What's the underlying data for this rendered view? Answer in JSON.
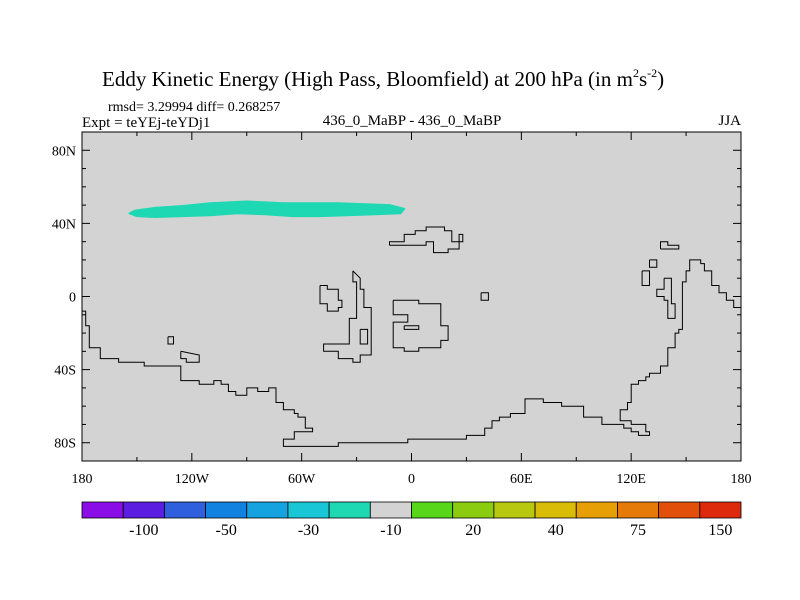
{
  "chart_data": {
    "type": "heatmap",
    "title": "Eddy Kinetic Energy (High Pass, Bloomfield) at 200 hPa (in m",
    "title_units": {
      "m_exp": "2",
      "s": "s",
      "s_exp": "-2",
      "close": ")"
    },
    "stats_label": "rmsd= 3.29994 diff= 0.268257",
    "expt_label": "Expt = teYEj-teYDj1",
    "center_label": "436_0_MaBP - 436_0_MaBP",
    "season_label": "JJA",
    "x_axis": {
      "range": [
        -180,
        180
      ],
      "ticks": [
        -180,
        -120,
        -60,
        0,
        60,
        120,
        180
      ],
      "tick_labels": [
        "180",
        "120W",
        "60W",
        "0",
        "60E",
        "120E",
        "180"
      ]
    },
    "y_axis": {
      "range": [
        -90,
        90
      ],
      "ticks": [
        80,
        40,
        0,
        -40,
        -80
      ],
      "tick_labels": [
        "80N",
        "40N",
        "0",
        "40S",
        "80S"
      ]
    },
    "background_color": "#d3d3d3",
    "anomaly_regions": [
      {
        "label": "-10 band",
        "color": "#1ed8b4",
        "outline": [
          [
            -151,
            47
          ],
          [
            -140,
            48.5
          ],
          [
            -125,
            49.5
          ],
          [
            -110,
            51
          ],
          [
            -100,
            51.5
          ],
          [
            -90,
            52
          ],
          [
            -80,
            51.5
          ],
          [
            -70,
            51
          ],
          [
            -55,
            51
          ],
          [
            -40,
            51
          ],
          [
            -25,
            50.5
          ],
          [
            -12,
            50
          ],
          [
            -4,
            48
          ],
          [
            -6,
            45.5
          ],
          [
            -20,
            45
          ],
          [
            -35,
            44.5
          ],
          [
            -50,
            44
          ],
          [
            -65,
            44
          ],
          [
            -80,
            45
          ],
          [
            -95,
            45.5
          ],
          [
            -110,
            44.5
          ],
          [
            -125,
            44
          ],
          [
            -140,
            43.5
          ],
          [
            -150,
            44
          ],
          [
            -154,
            45.5
          ]
        ]
      }
    ],
    "colorbar": {
      "colors": [
        "#8a0de8",
        "#5b1de0",
        "#2f5fdc",
        "#1182e0",
        "#15a3e0",
        "#19c6d6",
        "#1ed8b4",
        "#d3d3d3",
        "#58d61a",
        "#8ccc10",
        "#b8c80e",
        "#d9bc08",
        "#e6a006",
        "#e57a08",
        "#e24f0a",
        "#de2a0c"
      ],
      "labels": [
        "-100",
        "-50",
        "-30",
        "-10",
        "20",
        "40",
        "75",
        "150"
      ],
      "label_positions": [
        1.5,
        3.5,
        5.5,
        7.5,
        9.5,
        11.5,
        13.5,
        15.5
      ]
    },
    "coastlines": [
      [
        [
          -180,
          -8
        ],
        [
          -178,
          -8
        ],
        [
          -178,
          -16
        ],
        [
          -176,
          -16
        ],
        [
          -176,
          -28
        ],
        [
          -170,
          -28
        ],
        [
          -170,
          -34
        ],
        [
          -160,
          -34
        ],
        [
          -160,
          -36
        ],
        [
          -146,
          -36
        ],
        [
          -146,
          -38
        ],
        [
          -126,
          -38
        ],
        [
          -126,
          -46
        ],
        [
          -116,
          -46
        ],
        [
          -116,
          -48
        ],
        [
          -108,
          -48
        ],
        [
          -108,
          -46
        ],
        [
          -104,
          -46
        ],
        [
          -104,
          -48
        ],
        [
          -100,
          -48
        ],
        [
          -100,
          -52
        ],
        [
          -96,
          -52
        ],
        [
          -96,
          -54
        ],
        [
          -90,
          -54
        ],
        [
          -90,
          -50
        ],
        [
          -84,
          -50
        ],
        [
          -84,
          -52
        ],
        [
          -78,
          -52
        ],
        [
          -78,
          -50
        ],
        [
          -74,
          -50
        ],
        [
          -74,
          -58
        ],
        [
          -70,
          -58
        ],
        [
          -70,
          -62
        ],
        [
          -64,
          -62
        ],
        [
          -64,
          -64
        ],
        [
          -62,
          -64
        ],
        [
          -62,
          -66
        ],
        [
          -58,
          -66
        ],
        [
          -58,
          -72
        ],
        [
          -54,
          -72
        ],
        [
          -54,
          -74
        ],
        [
          -64,
          -74
        ],
        [
          -64,
          -78
        ],
        [
          -70,
          -78
        ],
        [
          -70,
          -82
        ],
        [
          -40,
          -82
        ],
        [
          -40,
          -80
        ],
        [
          -2,
          -80
        ],
        [
          -2,
          -78
        ],
        [
          30,
          -78
        ],
        [
          30,
          -76
        ],
        [
          40,
          -76
        ],
        [
          40,
          -72
        ],
        [
          44,
          -72
        ],
        [
          44,
          -68
        ],
        [
          48,
          -68
        ],
        [
          48,
          -66
        ],
        [
          54,
          -66
        ],
        [
          54,
          -64
        ],
        [
          62,
          -64
        ],
        [
          62,
          -56
        ],
        [
          72,
          -56
        ],
        [
          72,
          -58
        ],
        [
          82,
          -58
        ],
        [
          82,
          -60
        ],
        [
          94,
          -60
        ],
        [
          94,
          -66
        ],
        [
          104,
          -66
        ],
        [
          104,
          -70
        ],
        [
          116,
          -70
        ],
        [
          116,
          -72
        ],
        [
          120,
          -72
        ],
        [
          120,
          -74
        ],
        [
          124,
          -74
        ],
        [
          124,
          -76
        ],
        [
          130,
          -76
        ],
        [
          130,
          -74
        ],
        [
          128,
          -74
        ],
        [
          128,
          -70
        ],
        [
          120,
          -70
        ],
        [
          120,
          -68
        ],
        [
          114,
          -68
        ],
        [
          114,
          -62
        ],
        [
          118,
          -62
        ],
        [
          118,
          -58
        ],
        [
          120,
          -58
        ],
        [
          120,
          -48
        ],
        [
          124,
          -48
        ],
        [
          124,
          -46
        ],
        [
          128,
          -46
        ],
        [
          128,
          -44
        ],
        [
          130,
          -44
        ],
        [
          130,
          -42
        ],
        [
          136,
          -42
        ],
        [
          136,
          -38
        ],
        [
          140,
          -38
        ],
        [
          140,
          -28
        ],
        [
          144,
          -28
        ],
        [
          144,
          -20
        ],
        [
          146,
          -20
        ],
        [
          146,
          -18
        ],
        [
          148,
          -18
        ],
        [
          148,
          8
        ],
        [
          150,
          8
        ],
        [
          150,
          14
        ],
        [
          152,
          14
        ],
        [
          152,
          20
        ],
        [
          158,
          20
        ],
        [
          158,
          18
        ],
        [
          160,
          18
        ],
        [
          160,
          14
        ],
        [
          164,
          14
        ],
        [
          164,
          6
        ],
        [
          168,
          6
        ],
        [
          168,
          2
        ],
        [
          172,
          2
        ],
        [
          172,
          -2
        ],
        [
          176,
          -2
        ],
        [
          176,
          -6
        ],
        [
          180,
          -6
        ]
      ],
      [
        [
          -133,
          -22
        ],
        [
          -133,
          -26
        ],
        [
          -130,
          -26
        ],
        [
          -130,
          -22
        ],
        [
          -133,
          -22
        ]
      ],
      [
        [
          -126,
          -30
        ],
        [
          -126,
          -34
        ],
        [
          -123,
          -34
        ],
        [
          -123,
          -36
        ],
        [
          -116,
          -36
        ],
        [
          -116,
          -32
        ],
        [
          -126,
          -30
        ]
      ],
      [
        [
          -50,
          6
        ],
        [
          -50,
          -4
        ],
        [
          -46,
          -4
        ],
        [
          -46,
          -8
        ],
        [
          -40,
          -8
        ],
        [
          -40,
          -6
        ],
        [
          -38,
          -6
        ],
        [
          -38,
          -2
        ],
        [
          -40,
          -2
        ],
        [
          -40,
          4
        ],
        [
          -46,
          4
        ],
        [
          -46,
          6
        ],
        [
          -50,
          6
        ]
      ],
      [
        [
          -32,
          14
        ],
        [
          -32,
          8
        ],
        [
          -30,
          8
        ],
        [
          -30,
          -12
        ],
        [
          -34,
          -12
        ],
        [
          -34,
          -26
        ],
        [
          -48,
          -26
        ],
        [
          -48,
          -30
        ],
        [
          -40,
          -30
        ],
        [
          -40,
          -34
        ],
        [
          -32,
          -34
        ],
        [
          -32,
          -36
        ],
        [
          -28,
          -36
        ],
        [
          -28,
          -32
        ],
        [
          -22,
          -32
        ],
        [
          -22,
          -6
        ],
        [
          -26,
          -6
        ],
        [
          -26,
          4
        ],
        [
          -28,
          4
        ],
        [
          -28,
          10
        ],
        [
          -32,
          14
        ]
      ],
      [
        [
          -28,
          -18
        ],
        [
          -28,
          -26
        ],
        [
          -24,
          -26
        ],
        [
          -24,
          -18
        ],
        [
          -28,
          -18
        ]
      ],
      [
        [
          -10,
          -2
        ],
        [
          -10,
          -10
        ],
        [
          -2,
          -10
        ],
        [
          -2,
          -14
        ],
        [
          -10,
          -14
        ],
        [
          -10,
          -28
        ],
        [
          -4,
          -28
        ],
        [
          -4,
          -30
        ],
        [
          4,
          -30
        ],
        [
          4,
          -28
        ],
        [
          16,
          -28
        ],
        [
          16,
          -24
        ],
        [
          20,
          -24
        ],
        [
          20,
          -16
        ],
        [
          16,
          -16
        ],
        [
          16,
          -4
        ],
        [
          4,
          -4
        ],
        [
          4,
          -2
        ],
        [
          -10,
          -2
        ]
      ],
      [
        [
          -4,
          -16
        ],
        [
          4,
          -16
        ],
        [
          4,
          -18
        ],
        [
          -4,
          -18
        ],
        [
          -4,
          -16
        ]
      ],
      [
        [
          -12,
          28
        ],
        [
          -12,
          30
        ],
        [
          -4,
          30
        ],
        [
          -4,
          34
        ],
        [
          2,
          34
        ],
        [
          2,
          36
        ],
        [
          8,
          36
        ],
        [
          8,
          38
        ],
        [
          18,
          38
        ],
        [
          18,
          36
        ],
        [
          22,
          36
        ],
        [
          22,
          30
        ],
        [
          28,
          30
        ],
        [
          28,
          34
        ],
        [
          26,
          34
        ],
        [
          26,
          26
        ],
        [
          20,
          26
        ],
        [
          20,
          24
        ],
        [
          12,
          24
        ],
        [
          12,
          30
        ],
        [
          8,
          30
        ],
        [
          8,
          28
        ],
        [
          -12,
          28
        ]
      ],
      [
        [
          38,
          2
        ],
        [
          38,
          -2
        ],
        [
          42,
          -2
        ],
        [
          42,
          2
        ],
        [
          38,
          2
        ]
      ],
      [
        [
          126,
          14
        ],
        [
          126,
          6
        ],
        [
          130,
          6
        ],
        [
          130,
          14
        ],
        [
          126,
          14
        ]
      ],
      [
        [
          130,
          20
        ],
        [
          130,
          16
        ],
        [
          134,
          16
        ],
        [
          134,
          20
        ],
        [
          130,
          20
        ]
      ],
      [
        [
          138,
          10
        ],
        [
          138,
          4
        ],
        [
          134,
          4
        ],
        [
          134,
          0
        ],
        [
          138,
          0
        ],
        [
          138,
          -2
        ],
        [
          140,
          -2
        ],
        [
          140,
          -12
        ],
        [
          144,
          -12
        ],
        [
          144,
          -4
        ],
        [
          142,
          -4
        ],
        [
          142,
          10
        ],
        [
          138,
          10
        ]
      ],
      [
        [
          136,
          26
        ],
        [
          136,
          30
        ],
        [
          140,
          30
        ],
        [
          140,
          28
        ],
        [
          146,
          28
        ],
        [
          146,
          26
        ],
        [
          136,
          26
        ]
      ]
    ]
  }
}
